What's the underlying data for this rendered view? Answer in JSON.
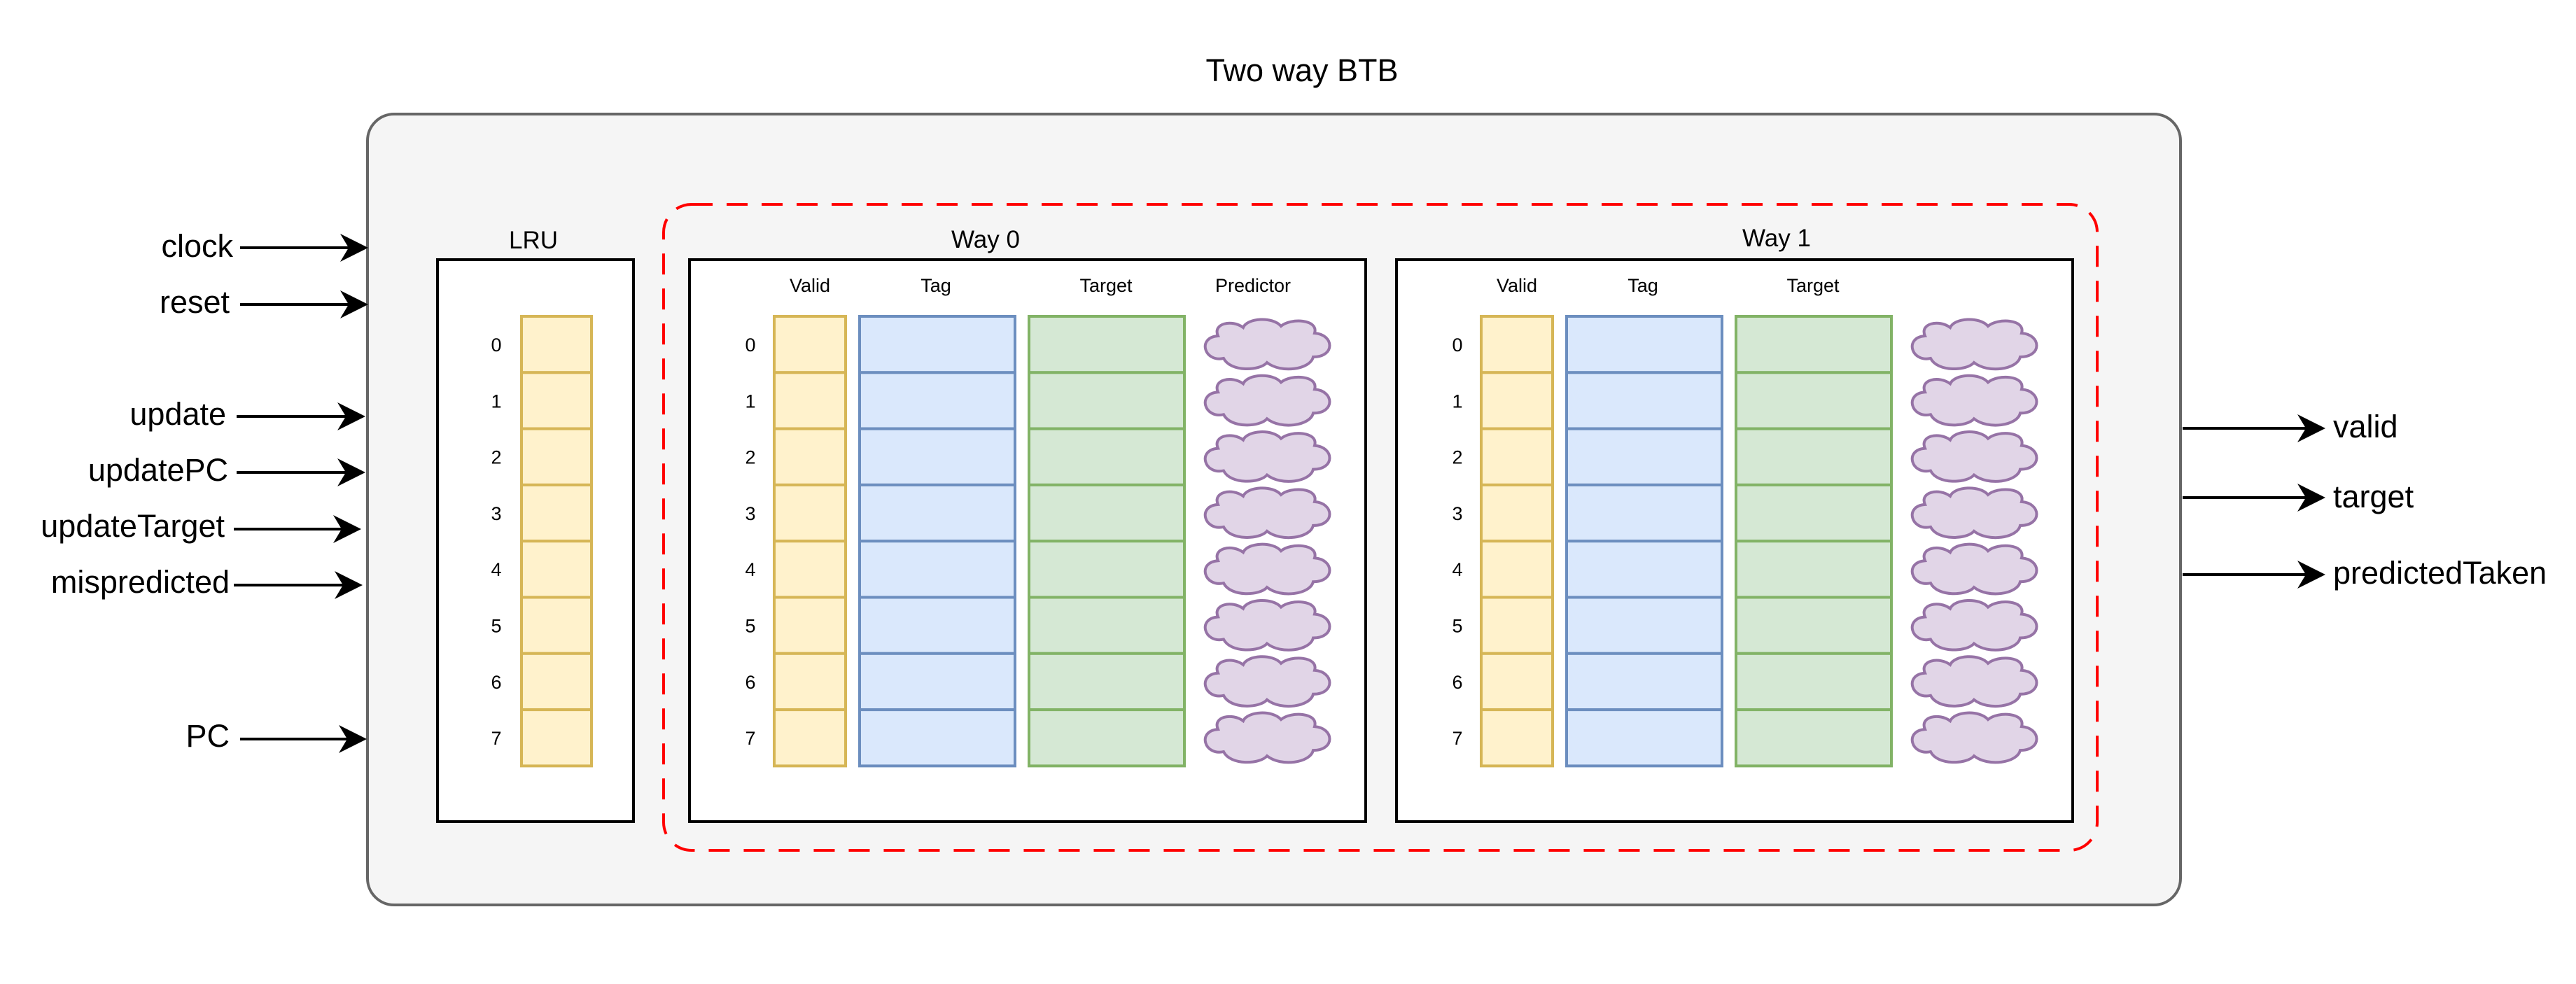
{
  "title": "Two way BTB",
  "inputs": [
    "clock",
    "reset",
    "update",
    "updatePC",
    "updateTarget",
    "mispredicted",
    "PC"
  ],
  "outputs": [
    "valid",
    "target",
    "predictedTaken"
  ],
  "lru": {
    "label": "LRU",
    "indices": [
      "0",
      "1",
      "2",
      "3",
      "4",
      "5",
      "6",
      "7"
    ]
  },
  "ways": [
    {
      "label": "Way 0",
      "columns": [
        "Valid",
        "Tag",
        "Target",
        "Predictor"
      ],
      "indices": [
        "0",
        "1",
        "2",
        "3",
        "4",
        "5",
        "6",
        "7"
      ]
    },
    {
      "label": "Way 1",
      "columns": [
        "Valid",
        "Tag",
        "Target"
      ],
      "indices": [
        "0",
        "1",
        "2",
        "3",
        "4",
        "5",
        "6",
        "7"
      ]
    }
  ],
  "colors": {
    "container_fill": "#f5f5f5",
    "container_stroke": "#666666",
    "valid_fill": "#fff2cc",
    "valid_stroke": "#d6b656",
    "tag_fill": "#dae8fc",
    "tag_stroke": "#6c8ebf",
    "target_fill": "#d5e8d4",
    "target_stroke": "#82b366",
    "predictor_fill": "#e1d5e7",
    "predictor_stroke": "#9673a6",
    "dashed_group": "#ff0000"
  },
  "cell_shape": "cloud"
}
